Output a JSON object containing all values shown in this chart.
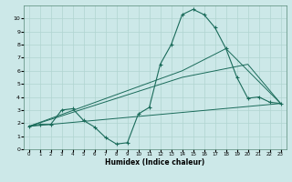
{
  "xlabel": "Humidex (Indice chaleur)",
  "bg_color": "#cce8e8",
  "grid_color": "#b0d4d0",
  "line_color": "#1a6b5a",
  "xlim": [
    -0.5,
    23.5
  ],
  "ylim": [
    0,
    11
  ],
  "xticks": [
    0,
    1,
    2,
    3,
    4,
    5,
    6,
    7,
    8,
    9,
    10,
    11,
    12,
    13,
    14,
    15,
    16,
    17,
    18,
    19,
    20,
    21,
    22,
    23
  ],
  "yticks": [
    0,
    1,
    2,
    3,
    4,
    5,
    6,
    7,
    8,
    9,
    10
  ],
  "line1_x": [
    0,
    1,
    2,
    3,
    4,
    5,
    6,
    7,
    8,
    9,
    10,
    11,
    12,
    13,
    14,
    15,
    16,
    17,
    18,
    19,
    20,
    21,
    22,
    23
  ],
  "line1_y": [
    1.75,
    1.9,
    1.9,
    3.0,
    3.1,
    2.2,
    1.7,
    0.9,
    0.4,
    0.5,
    2.7,
    3.2,
    6.5,
    8.0,
    10.3,
    10.7,
    10.3,
    9.3,
    7.7,
    5.5,
    3.9,
    4.0,
    3.6,
    3.5
  ],
  "line2_x": [
    0,
    23
  ],
  "line2_y": [
    1.75,
    3.5
  ],
  "line3_x": [
    0,
    14,
    20,
    23
  ],
  "line3_y": [
    1.75,
    5.5,
    6.5,
    3.5
  ],
  "line4_x": [
    0,
    14,
    18,
    23
  ],
  "line4_y": [
    1.75,
    6.0,
    7.7,
    3.5
  ]
}
